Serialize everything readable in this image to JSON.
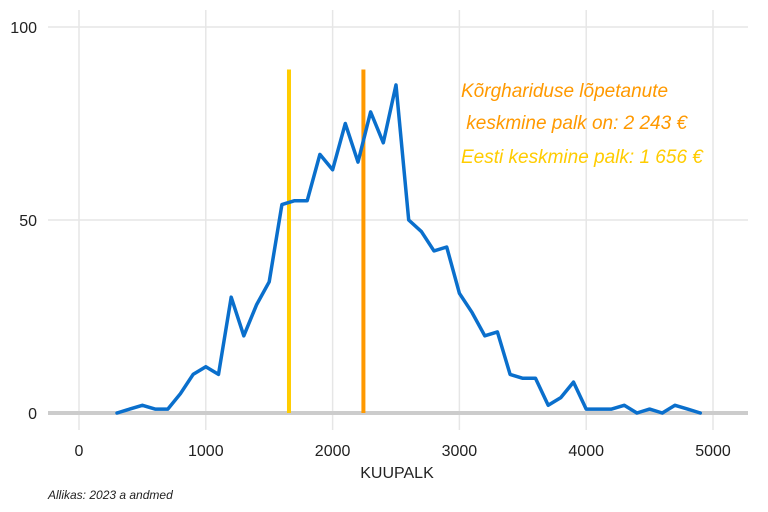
{
  "chart_data": {
    "type": "line",
    "title": "",
    "xlabel": "KUUPALK",
    "ylabel": "",
    "xlim": [
      -120,
      5250
    ],
    "ylim": [
      0,
      100
    ],
    "xticks": [
      0,
      1000,
      2000,
      3000,
      4000,
      5000
    ],
    "yticks": [
      0,
      50,
      100
    ],
    "x_tick_labels": [
      "0",
      "1000",
      "2000",
      "3000",
      "4000",
      "5000"
    ],
    "y_tick_labels": [
      "0",
      "50",
      "100"
    ],
    "grid": true,
    "series": [
      {
        "color": "#0a6fcc",
        "x": [
          300,
          400,
          500,
          600,
          700,
          800,
          900,
          1000,
          1100,
          1200,
          1300,
          1400,
          1500,
          1600,
          1700,
          1800,
          1900,
          2000,
          2100,
          2200,
          2300,
          2400,
          2500,
          2600,
          2700,
          2800,
          2900,
          3000,
          3100,
          3200,
          3300,
          3400,
          3500,
          3600,
          3700,
          3800,
          3900,
          4000,
          4100,
          4200,
          4300,
          4400,
          4500,
          4600,
          4700,
          4800,
          4900
        ],
        "y": [
          0,
          1,
          2,
          1,
          1,
          5,
          10,
          12,
          10,
          30,
          20,
          28,
          34,
          54,
          55,
          55,
          67,
          63,
          75,
          65,
          78,
          70,
          85,
          50,
          47,
          42,
          43,
          31,
          26,
          20,
          21,
          10,
          9,
          9,
          2,
          4,
          8,
          1,
          1,
          1,
          2,
          0,
          1,
          0,
          2,
          1,
          0
        ]
      }
    ],
    "reference_lines": [
      {
        "x": 1656,
        "y_top": 89,
        "color": "#ffcc00"
      },
      {
        "x": 2243,
        "y_top": 89,
        "color": "#ff9900"
      }
    ],
    "annotations": [
      {
        "lines": [
          "Kõrghariduse lõpetanute",
          " keskmine palk on: 2 243 €"
        ],
        "color": "#ff9900"
      },
      {
        "lines": [
          "Eesti keskmine palk: 1 656 €"
        ],
        "color": "#ffcc00"
      }
    ],
    "source": "Allikas: 2023 a andmed"
  }
}
